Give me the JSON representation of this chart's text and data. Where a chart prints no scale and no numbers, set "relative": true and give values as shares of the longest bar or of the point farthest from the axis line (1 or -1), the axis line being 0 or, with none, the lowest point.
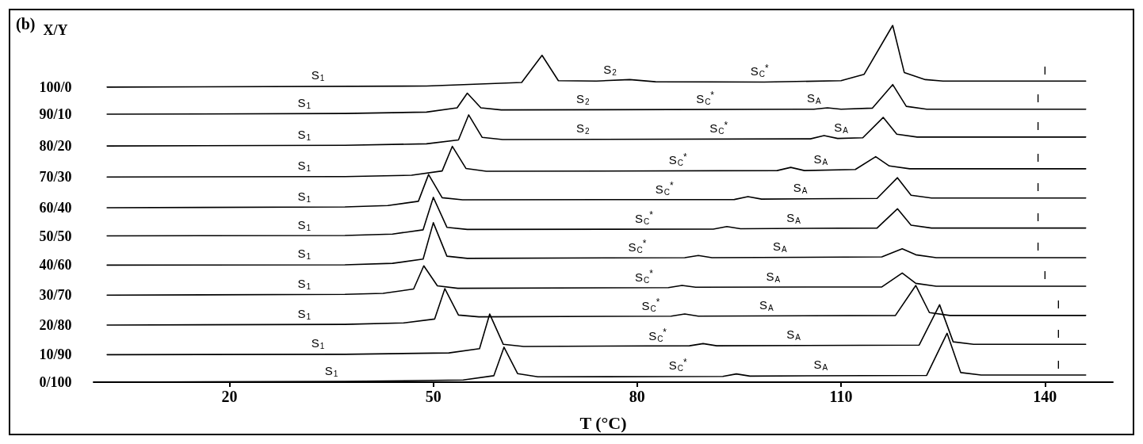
{
  "chart_data": {
    "type": "line",
    "title": "(b)",
    "legend_title": "X/Y",
    "xlabel": "T (°C)",
    "relative": true,
    "marker": "none",
    "line_style": "solid",
    "xlim": [
      0,
      150
    ],
    "xticks": [
      20,
      50,
      80,
      110,
      140
    ],
    "series": [
      {
        "name": "100/0",
        "color": "#000000",
        "x": [
          2,
          49,
          63,
          66,
          68.4,
          74,
          78.9,
          82.7,
          98.7,
          110,
          113.4,
          117.6,
          119.3,
          122.4,
          125,
          146
        ],
        "values": [
          0.827,
          0.83,
          0.84,
          0.916,
          0.845,
          0.844,
          0.848,
          0.842,
          0.841,
          0.845,
          0.863,
          1.0,
          0.868,
          0.848,
          0.844,
          0.844
        ]
      },
      {
        "name": "90/10",
        "color": "#000000",
        "x": [
          2,
          37,
          49,
          53.5,
          55,
          57,
          60,
          106,
          108,
          110,
          114.6,
          117.6,
          119.6,
          122.6,
          146
        ],
        "values": [
          0.751,
          0.753,
          0.757,
          0.769,
          0.81,
          0.769,
          0.763,
          0.765,
          0.769,
          0.765,
          0.768,
          0.834,
          0.773,
          0.765,
          0.765
        ]
      },
      {
        "name": "80/20",
        "color": "#000000",
        "x": [
          2,
          37,
          49,
          53.7,
          55.2,
          57.2,
          60.2,
          105.5,
          107.5,
          109.5,
          113.2,
          116.2,
          118.2,
          121.2,
          146
        ],
        "values": [
          0.662,
          0.664,
          0.668,
          0.679,
          0.749,
          0.686,
          0.68,
          0.682,
          0.691,
          0.683,
          0.685,
          0.742,
          0.695,
          0.687,
          0.687
        ]
      },
      {
        "name": "70/30",
        "color": "#000000",
        "x": [
          2,
          37,
          46.8,
          51.3,
          52.8,
          54.8,
          57.8,
          100.6,
          102.6,
          104.6,
          112.1,
          115.1,
          117.1,
          120.1,
          146
        ],
        "values": [
          0.575,
          0.576,
          0.58,
          0.592,
          0.661,
          0.599,
          0.591,
          0.593,
          0.602,
          0.593,
          0.596,
          0.632,
          0.606,
          0.598,
          0.598
        ]
      },
      {
        "name": "60/40",
        "color": "#000000",
        "x": [
          2,
          37,
          43.3,
          47.8,
          49.3,
          51.3,
          54.3,
          94.3,
          96.3,
          98.3,
          115.3,
          118.3,
          120.3,
          123.3,
          146
        ],
        "values": [
          0.489,
          0.491,
          0.495,
          0.507,
          0.582,
          0.517,
          0.511,
          0.512,
          0.52,
          0.513,
          0.515,
          0.573,
          0.524,
          0.516,
          0.516
        ]
      },
      {
        "name": "50/50",
        "color": "#000000",
        "x": [
          2,
          37,
          44,
          48.5,
          50,
          52,
          55,
          91.2,
          93.2,
          95.2,
          115.3,
          118.3,
          120.3,
          123.3,
          146
        ],
        "values": [
          0.41,
          0.411,
          0.415,
          0.427,
          0.518,
          0.434,
          0.428,
          0.429,
          0.436,
          0.43,
          0.432,
          0.486,
          0.44,
          0.432,
          0.432
        ]
      },
      {
        "name": "40/60",
        "color": "#000000",
        "x": [
          2,
          37,
          44,
          48.5,
          50,
          52,
          55,
          87,
          89,
          91,
          116,
          119,
          121,
          124,
          146
        ],
        "values": [
          0.328,
          0.329,
          0.333,
          0.345,
          0.447,
          0.353,
          0.347,
          0.349,
          0.355,
          0.349,
          0.351,
          0.374,
          0.357,
          0.349,
          0.349
        ]
      },
      {
        "name": "30/70",
        "color": "#000000",
        "x": [
          2,
          37,
          42.6,
          47.1,
          48.6,
          50.6,
          53.6,
          84.6,
          86.6,
          88.6,
          116,
          119,
          121,
          124,
          146
        ],
        "values": [
          0.244,
          0.246,
          0.249,
          0.261,
          0.326,
          0.27,
          0.263,
          0.265,
          0.271,
          0.266,
          0.267,
          0.306,
          0.277,
          0.269,
          0.269
        ]
      },
      {
        "name": "20/80",
        "color": "#000000",
        "x": [
          2,
          37,
          45.7,
          50.2,
          51.7,
          53.7,
          56.7,
          85,
          87,
          89,
          118,
          121,
          123,
          126,
          146
        ],
        "values": [
          0.16,
          0.162,
          0.166,
          0.177,
          0.262,
          0.188,
          0.183,
          0.185,
          0.191,
          0.185,
          0.187,
          0.271,
          0.195,
          0.187,
          0.187
        ]
      },
      {
        "name": "10/90",
        "color": "#000000",
        "x": [
          2,
          37,
          52.3,
          56.8,
          58.3,
          60.3,
          63.3,
          87.7,
          89.7,
          91.7,
          121.5,
          124.5,
          126.5,
          129.5,
          146
        ],
        "values": [
          0.077,
          0.078,
          0.082,
          0.094,
          0.191,
          0.106,
          0.1,
          0.102,
          0.108,
          0.102,
          0.104,
          0.217,
          0.113,
          0.106,
          0.106
        ]
      },
      {
        "name": "0/100",
        "color": "#000000",
        "x": [
          2,
          37,
          54.4,
          58.9,
          60.4,
          62.4,
          65.4,
          92.6,
          94.6,
          96.6,
          122.6,
          125.6,
          127.6,
          130.6,
          146
        ],
        "values": [
          0.0,
          0.002,
          0.006,
          0.018,
          0.098,
          0.024,
          0.015,
          0.016,
          0.023,
          0.017,
          0.019,
          0.137,
          0.027,
          0.02,
          0.02
        ]
      }
    ],
    "annotations": [
      {
        "text": "S$_{1}$",
        "x": 33,
        "y": 0.829
      },
      {
        "text": "S$_{2}$",
        "x": 76,
        "y": 0.846
      },
      {
        "text": "S$_{C}$$^{*}$",
        "x": 98,
        "y": 0.841
      },
      {
        "text": "I",
        "x": 140,
        "y": 0.844
      },
      {
        "text": "S$_{1}$",
        "x": 31,
        "y": 0.753
      },
      {
        "text": "S$_{2}$",
        "x": 72,
        "y": 0.764
      },
      {
        "text": "S$_{C}$$^{*}$",
        "x": 90,
        "y": 0.764
      },
      {
        "text": "S$_{A}$",
        "x": 106,
        "y": 0.765
      },
      {
        "text": "I",
        "x": 139,
        "y": 0.765
      },
      {
        "text": "S$_{1}$",
        "x": 31,
        "y": 0.664
      },
      {
        "text": "S$_{2}$",
        "x": 72,
        "y": 0.681
      },
      {
        "text": "S$_{C}$$^{*}$",
        "x": 92,
        "y": 0.681
      },
      {
        "text": "S$_{A}$",
        "x": 110,
        "y": 0.684
      },
      {
        "text": "I",
        "x": 139,
        "y": 0.687
      },
      {
        "text": "S$_{1}$",
        "x": 31,
        "y": 0.576
      },
      {
        "text": "S$_{C}$$^{*}$",
        "x": 86,
        "y": 0.592
      },
      {
        "text": "S$_{A}$",
        "x": 107,
        "y": 0.594
      },
      {
        "text": "I",
        "x": 139,
        "y": 0.598
      },
      {
        "text": "S$_{1}$",
        "x": 31,
        "y": 0.49
      },
      {
        "text": "S$_{C}$$^{*}$",
        "x": 84,
        "y": 0.511
      },
      {
        "text": "S$_{A}$",
        "x": 104,
        "y": 0.514
      },
      {
        "text": "I",
        "x": 139,
        "y": 0.516
      },
      {
        "text": "S$_{1}$",
        "x": 31,
        "y": 0.411
      },
      {
        "text": "S$_{C}$$^{*}$",
        "x": 81,
        "y": 0.428
      },
      {
        "text": "S$_{A}$",
        "x": 103,
        "y": 0.431
      },
      {
        "text": "I",
        "x": 139,
        "y": 0.432
      },
      {
        "text": "S$_{1}$",
        "x": 31,
        "y": 0.329
      },
      {
        "text": "S$_{C}$$^{*}$",
        "x": 80,
        "y": 0.348
      },
      {
        "text": "S$_{A}$",
        "x": 101,
        "y": 0.35
      },
      {
        "text": "I",
        "x": 139,
        "y": 0.349
      },
      {
        "text": "S$_{1}$",
        "x": 31,
        "y": 0.245
      },
      {
        "text": "S$_{C}$$^{*}$",
        "x": 81,
        "y": 0.264
      },
      {
        "text": "S$_{A}$",
        "x": 100,
        "y": 0.266
      },
      {
        "text": "I",
        "x": 140,
        "y": 0.269
      },
      {
        "text": "S$_{1}$",
        "x": 31,
        "y": 0.161
      },
      {
        "text": "S$_{C}$$^{*}$",
        "x": 82,
        "y": 0.184
      },
      {
        "text": "S$_{A}$",
        "x": 99,
        "y": 0.186
      },
      {
        "text": "I",
        "x": 142,
        "y": 0.187
      },
      {
        "text": "S$_{1}$",
        "x": 33,
        "y": 0.078
      },
      {
        "text": "S$_{C}$$^{*}$",
        "x": 83,
        "y": 0.1
      },
      {
        "text": "S$_{A}$",
        "x": 103,
        "y": 0.103
      },
      {
        "text": "I",
        "x": 142,
        "y": 0.106
      },
      {
        "text": "S$_{1}$",
        "x": 35,
        "y": 0.002
      },
      {
        "text": "S$_{C}$$^{*}$",
        "x": 86,
        "y": 0.016
      },
      {
        "text": "S$_{A}$",
        "x": 107,
        "y": 0.018
      },
      {
        "text": "I",
        "x": 142,
        "y": 0.02
      }
    ]
  }
}
